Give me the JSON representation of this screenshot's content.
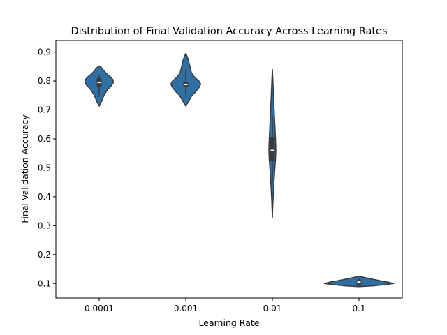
{
  "chart_data": {
    "type": "violin",
    "title": "Distribution of Final Validation Accuracy Across Learning Rates",
    "xlabel": "Learning Rate",
    "ylabel": "Final Validation Accuracy",
    "ylim": [
      0.05,
      0.94
    ],
    "yticks": [
      "0.1",
      "0.2",
      "0.3",
      "0.4",
      "0.5",
      "0.6",
      "0.7",
      "0.8",
      "0.9"
    ],
    "grid": false,
    "colors": {
      "violin": "#2f6fa5",
      "edge": "#3a3a3a",
      "box": "#3a3a3a",
      "median": "#ffffff"
    },
    "categories": [
      "0.0001",
      "0.001",
      "0.01",
      "0.1"
    ],
    "series": [
      {
        "category": "0.0001",
        "min": 0.713,
        "max": 0.852,
        "q1": 0.78,
        "median": 0.795,
        "q3": 0.81,
        "whisker_low": 0.745,
        "whisker_high": 0.82,
        "profile": [
          [
            0.713,
            0.0
          ],
          [
            0.73,
            0.035
          ],
          [
            0.75,
            0.07
          ],
          [
            0.77,
            0.12
          ],
          [
            0.785,
            0.18
          ],
          [
            0.795,
            0.205
          ],
          [
            0.805,
            0.2
          ],
          [
            0.815,
            0.16
          ],
          [
            0.825,
            0.11
          ],
          [
            0.835,
            0.07
          ],
          [
            0.845,
            0.04
          ],
          [
            0.852,
            0.0
          ]
        ]
      },
      {
        "category": "0.001",
        "min": 0.713,
        "max": 0.895,
        "q1": 0.78,
        "median": 0.788,
        "q3": 0.798,
        "whisker_low": 0.745,
        "whisker_high": 0.84,
        "profile": [
          [
            0.713,
            0.0
          ],
          [
            0.73,
            0.04
          ],
          [
            0.75,
            0.09
          ],
          [
            0.765,
            0.15
          ],
          [
            0.78,
            0.2
          ],
          [
            0.79,
            0.215
          ],
          [
            0.8,
            0.19
          ],
          [
            0.815,
            0.12
          ],
          [
            0.83,
            0.08
          ],
          [
            0.85,
            0.06
          ],
          [
            0.87,
            0.04
          ],
          [
            0.885,
            0.02
          ],
          [
            0.895,
            0.0
          ]
        ]
      },
      {
        "category": "0.01",
        "min": 0.328,
        "max": 0.84,
        "q1": 0.525,
        "median": 0.56,
        "q3": 0.605,
        "whisker_low": 0.45,
        "whisker_high": 0.68,
        "profile": [
          [
            0.328,
            0.0
          ],
          [
            0.38,
            0.008
          ],
          [
            0.43,
            0.018
          ],
          [
            0.48,
            0.03
          ],
          [
            0.53,
            0.045
          ],
          [
            0.56,
            0.05
          ],
          [
            0.6,
            0.045
          ],
          [
            0.65,
            0.035
          ],
          [
            0.7,
            0.025
          ],
          [
            0.75,
            0.016
          ],
          [
            0.8,
            0.008
          ],
          [
            0.84,
            0.0
          ]
        ]
      },
      {
        "category": "0.1",
        "min": 0.089,
        "max": 0.125,
        "q1": 0.095,
        "median": 0.105,
        "q3": 0.112,
        "whisker_low": 0.09,
        "whisker_high": 0.12,
        "profile": [
          [
            0.089,
            0.0
          ],
          [
            0.092,
            0.2
          ],
          [
            0.096,
            0.38
          ],
          [
            0.1,
            0.5
          ],
          [
            0.105,
            0.42
          ],
          [
            0.11,
            0.3
          ],
          [
            0.115,
            0.2
          ],
          [
            0.12,
            0.1
          ],
          [
            0.125,
            0.0
          ]
        ]
      }
    ]
  }
}
